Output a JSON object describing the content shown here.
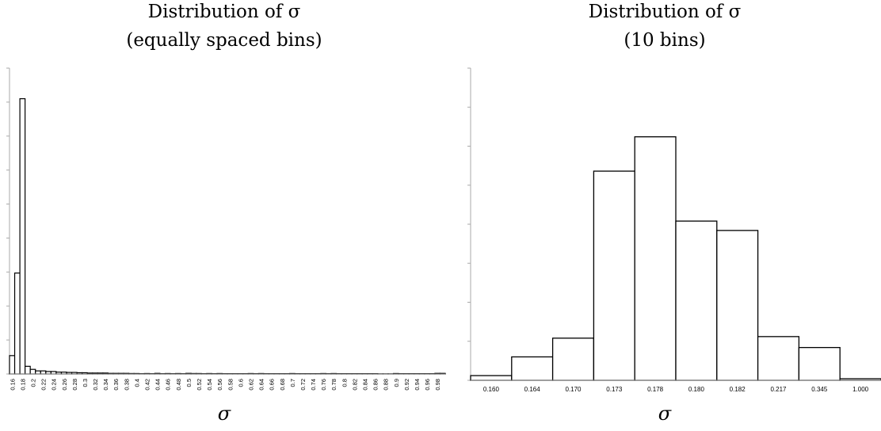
{
  "chart_data": [
    {
      "type": "bar",
      "title": "Distribution of σ",
      "subtitle": "(equally spaced bins)",
      "xlabel": "σ",
      "ylabel": "",
      "ylim": [
        0,
        100
      ],
      "grid": false,
      "categories": [
        "0.16",
        "0.18",
        "0.2",
        "0.22",
        "0.24",
        "0.26",
        "0.28",
        "0.3",
        "0.32",
        "0.34",
        "0.36",
        "0.38",
        "0.4",
        "0.42",
        "0.44",
        "0.46",
        "0.48",
        "0.5",
        "0.52",
        "0.54",
        "0.56",
        "0.58",
        "0.6",
        "0.62",
        "0.64",
        "0.66",
        "0.68",
        "0.7",
        "0.72",
        "0.74",
        "0.76",
        "0.78",
        "0.8",
        "0.82",
        "0.84",
        "0.86",
        "0.88",
        "0.9",
        "0.92",
        "0.94",
        "0.96",
        "0.98"
      ],
      "values": [
        6,
        90,
        1.5,
        1.0,
        0.8,
        0.6,
        0.5,
        0.4,
        0.3,
        0.3,
        0.2,
        0.2,
        0.15,
        0.15,
        0.2,
        0.15,
        0.15,
        0.2,
        0.15,
        0.15,
        0.15,
        0.1,
        0.1,
        0.15,
        0.15,
        0.1,
        0.1,
        0.15,
        0.1,
        0.1,
        0.15,
        0.15,
        0.1,
        0.1,
        0.1,
        0.1,
        0.05,
        0.15,
        0.1,
        0.1,
        0.1,
        0.2
      ],
      "values_minor": [
        33,
        2.5,
        1.0,
        0.8,
        0.6,
        0.5,
        0.4,
        0.3,
        0.3,
        0.2,
        0.2,
        0.15,
        0.1,
        0.1,
        0.1,
        0.1,
        0.1,
        0.15,
        0.1,
        0.1,
        0.1,
        0.1,
        0.1,
        0.1,
        0.1,
        0.1,
        0.1,
        0.1,
        0.1,
        0.1,
        0.1,
        0.1,
        0.1,
        0.1,
        0.1,
        0.05,
        0.05,
        0.1,
        0.1,
        0.1,
        0.1,
        0.2
      ]
    },
    {
      "type": "bar",
      "title": "Distribution of σ",
      "subtitle": "(10 bins)",
      "xlabel": "σ",
      "ylabel": "",
      "ylim": [
        0,
        100
      ],
      "grid": false,
      "categories": [
        "0.160",
        "0.164",
        "0.170",
        "0.173",
        "0.178",
        "0.180",
        "0.182",
        "0.217",
        "0.345",
        "1.000"
      ],
      "values": [
        1.5,
        7.5,
        13.5,
        67,
        78,
        51,
        48,
        14,
        10.5,
        0.5
      ]
    }
  ]
}
